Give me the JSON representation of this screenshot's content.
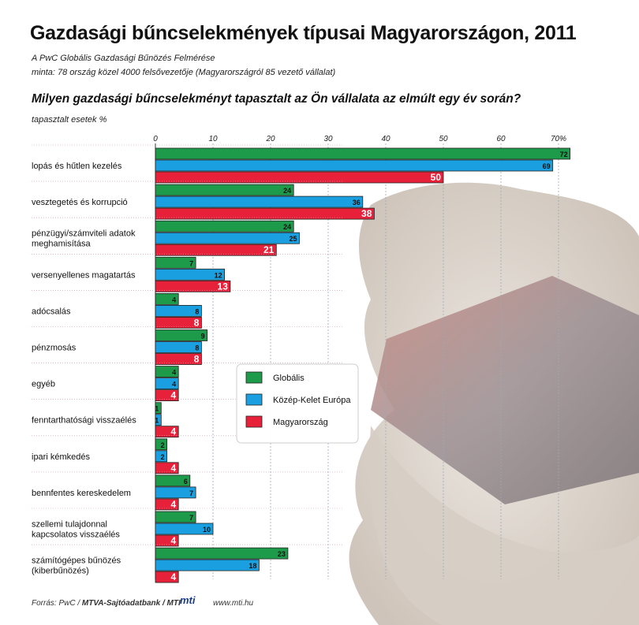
{
  "title": "Gazdasági bűncselekmények típusai Magyarországon, 2011",
  "subtitle1": "A PwC Globális Gazdasági Bűnözés Felmérése",
  "subtitle2": "minta: 78 ország közel 4000 felsővezetője (Magyarországról 85 vezető vállalat)",
  "question": "Milyen gazdasági bűncselekményt tapasztalt az Ön vállalata az elmúlt egy év során?",
  "unit_label": "tapasztalt esetek %",
  "footer": {
    "source_prefix": "Forrás: PwC / ",
    "source_bold": "MTVA-Sajtóadatbank / MTI",
    "logo": "mti",
    "website": "www.mti.hu"
  },
  "colors": {
    "global": "#1e9b4a",
    "cee": "#1aa0e0",
    "hungary": "#e8213a"
  },
  "chart_data": {
    "type": "bar",
    "orientation": "horizontal",
    "categories": [
      [
        "lopás és hűtlen kezelés"
      ],
      [
        "vesztegetés és korrupció"
      ],
      [
        "pénzügyi/számviteli adatok",
        "meghamisítása"
      ],
      [
        "versenyellenes magatartás"
      ],
      [
        "adócsalás"
      ],
      [
        "pénzmosás"
      ],
      [
        "egyéb"
      ],
      [
        "fenntarthatósági visszaélés"
      ],
      [
        "ipari kémkedés"
      ],
      [
        "bennfentes kereskedelem"
      ],
      [
        "szellemi tulajdonnal",
        "kapcsolatos visszaélés"
      ],
      [
        "számítógépes bűnözés",
        "(kiberbűnözés)"
      ]
    ],
    "series": [
      {
        "name": "Globális",
        "color": "#1e9b4a",
        "values": [
          72,
          24,
          24,
          7,
          4,
          9,
          4,
          1,
          2,
          6,
          7,
          23
        ]
      },
      {
        "name": "Közép-Kelet Európa",
        "color": "#1aa0e0",
        "values": [
          69,
          36,
          25,
          12,
          8,
          8,
          4,
          1,
          2,
          7,
          10,
          18
        ]
      },
      {
        "name": "Magyarország",
        "color": "#e8213a",
        "values": [
          50,
          38,
          21,
          13,
          8,
          8,
          4,
          4,
          4,
          4,
          4,
          4
        ]
      }
    ],
    "xticks": [
      "0",
      "10",
      "20",
      "30",
      "40",
      "50",
      "60",
      "70%"
    ],
    "xlim": [
      0,
      72
    ],
    "grid": true,
    "legend_position": "center-right"
  }
}
